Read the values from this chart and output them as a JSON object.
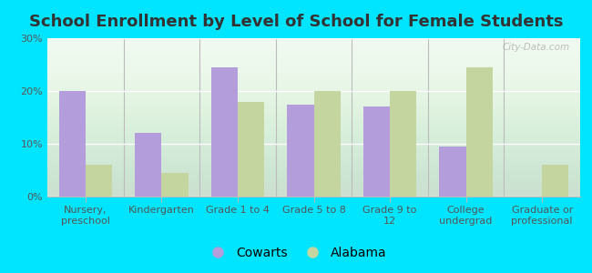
{
  "title": "School Enrollment by Level of School for Female Students",
  "categories": [
    "Nursery,\npreschool",
    "Kindergarten",
    "Grade 1 to 4",
    "Grade 5 to 8",
    "Grade 9 to\n12",
    "College\nundergrad",
    "Graduate or\nprofessional"
  ],
  "cowarts": [
    20,
    12,
    24.5,
    17.5,
    17,
    9.5,
    0
  ],
  "alabama": [
    6,
    4.5,
    18,
    20,
    20,
    24.5,
    6
  ],
  "cowarts_color": "#b39ddb",
  "alabama_color": "#c5d5a0",
  "background_color": "#00e5ff",
  "plot_bg_color": "#e8f5e4",
  "ylim": [
    0,
    30
  ],
  "yticks": [
    0,
    10,
    20,
    30
  ],
  "ytick_labels": [
    "0%",
    "10%",
    "20%",
    "30%"
  ],
  "bar_width": 0.35,
  "legend_labels": [
    "Cowarts",
    "Alabama"
  ],
  "watermark": "City-Data.com",
  "title_fontsize": 13,
  "tick_fontsize": 8,
  "legend_fontsize": 10
}
